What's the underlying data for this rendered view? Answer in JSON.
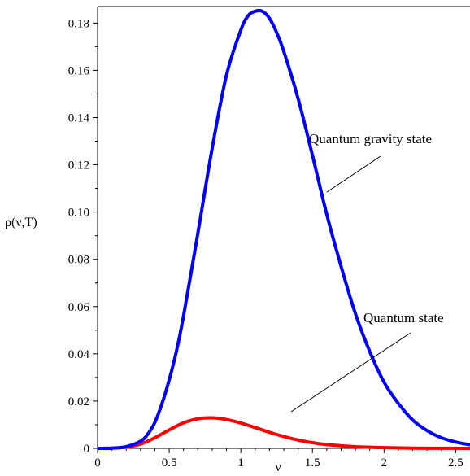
{
  "chart_data": {
    "type": "line",
    "xlabel": "ν",
    "ylabel": "ρ(ν,T)",
    "xlim": [
      0,
      2.6
    ],
    "ylim": [
      0,
      0.187
    ],
    "grid": false,
    "x_ticks": [
      "0",
      "0.5",
      "1",
      "1.5",
      "2",
      "2.5"
    ],
    "y_ticks": [
      "0",
      "0.02",
      "0.04",
      "0.06",
      "0.08",
      "0.10",
      "0.12",
      "0.14",
      "0.16",
      "0.18"
    ],
    "series": [
      {
        "name": "Quantum gravity state",
        "color": "#0000ff",
        "x": [
          0,
          0.1,
          0.2,
          0.3,
          0.35,
          0.4,
          0.45,
          0.5,
          0.55,
          0.6,
          0.7,
          0.8,
          0.9,
          1.0,
          1.05,
          1.1,
          1.15,
          1.2,
          1.25,
          1.3,
          1.4,
          1.5,
          1.6,
          1.7,
          1.8,
          1.9,
          2.0,
          2.1,
          2.2,
          2.3,
          2.4,
          2.5,
          2.6
        ],
        "y": [
          0,
          0.0001,
          0.0007,
          0.003,
          0.006,
          0.011,
          0.019,
          0.029,
          0.041,
          0.056,
          0.091,
          0.127,
          0.158,
          0.177,
          0.183,
          0.185,
          0.185,
          0.182,
          0.176,
          0.168,
          0.148,
          0.124,
          0.099,
          0.077,
          0.057,
          0.041,
          0.028,
          0.019,
          0.012,
          0.0075,
          0.0045,
          0.0027,
          0.0015
        ]
      },
      {
        "name": "Quantum state",
        "color": "#ff0000",
        "x": [
          0,
          0.1,
          0.2,
          0.3,
          0.4,
          0.5,
          0.6,
          0.7,
          0.8,
          0.9,
          1.0,
          1.1,
          1.2,
          1.3,
          1.4,
          1.5,
          1.6,
          1.8,
          2.0,
          2.2,
          2.4,
          2.6
        ],
        "y": [
          0,
          0.0001,
          0.0005,
          0.0018,
          0.0045,
          0.0078,
          0.0108,
          0.0125,
          0.0129,
          0.0122,
          0.0107,
          0.0088,
          0.0068,
          0.005,
          0.0035,
          0.0024,
          0.0016,
          0.0007,
          0.0003,
          0.0001,
          5e-05,
          2e-05
        ]
      }
    ],
    "annotations": [
      {
        "text": "Quantum gravity state",
        "series": "Quantum gravity state"
      },
      {
        "text": "Quantum state",
        "series": "Quantum state"
      }
    ]
  }
}
